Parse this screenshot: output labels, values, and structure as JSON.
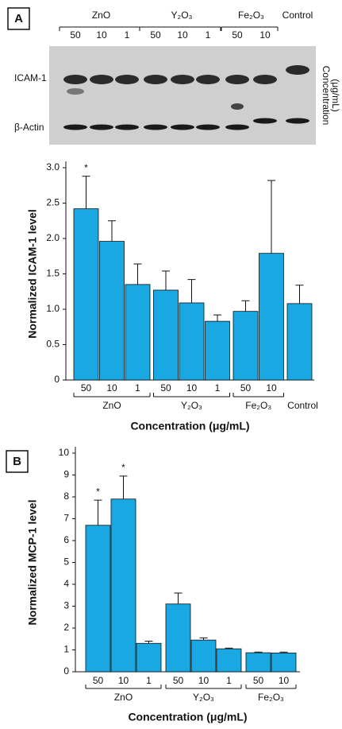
{
  "blot": {
    "panel": "A",
    "groups": [
      {
        "name": "ZnO",
        "concentrations": [
          "50",
          "10",
          "1"
        ]
      },
      {
        "name": "Y₂O₃",
        "concentrations": [
          "50",
          "10",
          "1"
        ]
      },
      {
        "name": "Fe₂O₃",
        "concentrations": [
          "50",
          "10"
        ]
      },
      {
        "name": "Control",
        "concentrations": []
      }
    ],
    "rows": [
      "ICAM-1",
      "β-Actin"
    ],
    "side_label": [
      "Concentration",
      "(μg/mL)"
    ]
  },
  "chart_data": [
    {
      "type": "bar",
      "y_label": "Normalized ICAM-1 level",
      "x_label": "Concentration (μg/mL)",
      "groups": [
        {
          "name": "ZnO",
          "categories": [
            "50",
            "10",
            "1"
          ]
        },
        {
          "name": "Y₂O₃",
          "categories": [
            "50",
            "10",
            "1"
          ]
        },
        {
          "name": "Fe₂O₃",
          "categories": [
            "50",
            "10"
          ]
        },
        {
          "name": "Control",
          "categories": [
            null
          ]
        }
      ],
      "values": [
        2.42,
        1.96,
        1.35,
        1.27,
        1.09,
        0.83,
        0.97,
        1.79,
        1.08
      ],
      "errors": [
        0.46,
        0.29,
        0.29,
        0.27,
        0.33,
        0.09,
        0.15,
        1.03,
        0.26
      ],
      "significance": [
        "*",
        null,
        null,
        null,
        null,
        null,
        null,
        null,
        null
      ],
      "color": "#1aa8e2",
      "ylim": [
        0,
        3.0
      ],
      "yticks": [
        0,
        0.5,
        {
          "value": 1,
          "label": "1.0"
        },
        1.5,
        {
          "value": 2,
          "label": "2.0"
        },
        2.5,
        {
          "value": 3,
          "label": "3.0"
        }
      ]
    },
    {
      "type": "bar",
      "panel": "B",
      "y_label": "Normalized MCP-1 level",
      "x_label": "Concentration (μg/mL)",
      "groups": [
        {
          "name": "ZnO",
          "categories": [
            "50",
            "10",
            "1"
          ]
        },
        {
          "name": "Y₂O₃",
          "categories": [
            "50",
            "10",
            "1"
          ]
        },
        {
          "name": "Fe₂O₃",
          "categories": [
            "50",
            "10"
          ]
        }
      ],
      "values": [
        6.7,
        7.9,
        1.3,
        3.1,
        1.45,
        1.05,
        0.87,
        0.86
      ],
      "errors": [
        1.15,
        1.05,
        0.1,
        0.5,
        0.1,
        0.03,
        0.03,
        0.04
      ],
      "significance": [
        "*",
        "*",
        null,
        null,
        null,
        null,
        null,
        null
      ],
      "color": "#1aa8e2",
      "ylim": [
        0,
        10
      ],
      "yticks": [
        0,
        1,
        2,
        3,
        4,
        5,
        6,
        7,
        8,
        9,
        10
      ]
    }
  ]
}
